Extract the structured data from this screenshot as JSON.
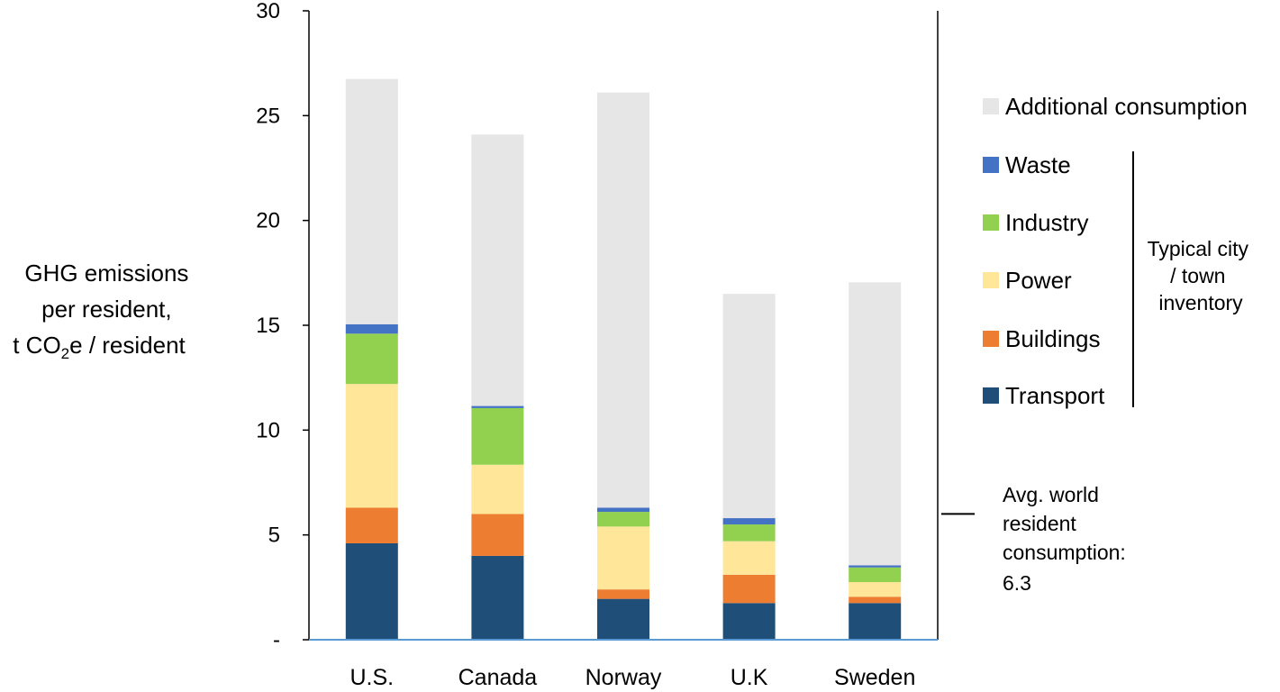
{
  "chart_data": {
    "type": "bar",
    "stacked": true,
    "categories": [
      "U.S.",
      "Canada",
      "Norway",
      "U.K",
      "Sweden"
    ],
    "series": [
      {
        "name": "Transport",
        "color": "#1f4e79",
        "values": [
          4.6,
          4.0,
          1.95,
          1.75,
          1.75
        ]
      },
      {
        "name": "Buildings",
        "color": "#ed7d31",
        "values": [
          1.7,
          2.0,
          0.45,
          1.35,
          0.3
        ]
      },
      {
        "name": "Power",
        "color": "#ffe699",
        "values": [
          5.9,
          2.35,
          3.0,
          1.6,
          0.7
        ]
      },
      {
        "name": "Industry",
        "color": "#92d050",
        "values": [
          2.4,
          2.7,
          0.7,
          0.8,
          0.7
        ]
      },
      {
        "name": "Waste",
        "color": "#4472c4",
        "values": [
          0.45,
          0.1,
          0.2,
          0.3,
          0.1
        ]
      },
      {
        "name": "Additional consumption",
        "color": "#e7e6e6",
        "values": [
          11.7,
          12.95,
          19.8,
          10.7,
          13.5
        ]
      }
    ],
    "ylim": [
      0,
      30
    ],
    "yticks": [
      {
        "value": 0,
        "label": "-"
      },
      {
        "value": 5,
        "label": "5"
      },
      {
        "value": 10,
        "label": "10"
      },
      {
        "value": 15,
        "label": "15"
      },
      {
        "value": 20,
        "label": "20"
      },
      {
        "value": 25,
        "label": "25"
      },
      {
        "value": 30,
        "label": "30"
      }
    ],
    "ylabel_lines": [
      "GHG emissions",
      "per resident,",
      "t CO",
      "2",
      "e  / resident"
    ],
    "legend_order": [
      "Additional consumption",
      "Waste",
      "Industry",
      "Power",
      "Buildings",
      "Transport"
    ],
    "legend_placement": "right",
    "bracket_label_lines": [
      "Typical city",
      "/ town",
      "inventory"
    ],
    "reference": {
      "value": 6.3,
      "label_lines": [
        "Avg. world",
        "resident",
        "consumption:",
        "6.3"
      ]
    },
    "grid": false
  }
}
